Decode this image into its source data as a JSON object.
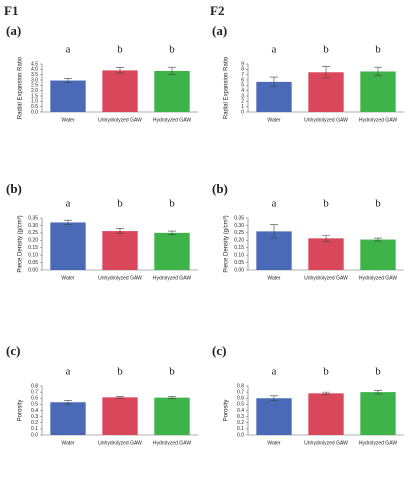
{
  "columns": [
    "F1",
    "F2"
  ],
  "chart_data": [
    {
      "type": "bar",
      "column": 0,
      "panel": "(a)",
      "ylabel": "Radial Expansion Ratio",
      "categories": [
        "Water",
        "Unhydrolyzed GAW",
        "Hydrolyzed GAW"
      ],
      "values": [
        2.95,
        3.9,
        3.85
      ],
      "errors": [
        0.2,
        0.25,
        0.35
      ],
      "annotations": [
        "a",
        "b",
        "b"
      ],
      "colors": [
        "#4a6ab8",
        "#d9485a",
        "#3db34a"
      ],
      "ylim": [
        0,
        4.5
      ],
      "yticks": [
        {
          "value": 0,
          "label": "0.0"
        },
        {
          "value": 0.5,
          "label": "0.5"
        },
        {
          "value": 1,
          "label": "1.0"
        },
        {
          "value": 1.5,
          "label": "1.5"
        },
        {
          "value": 2,
          "label": "2.0"
        },
        {
          "value": 2.5,
          "label": "2.5"
        },
        {
          "value": 3,
          "label": "3.0"
        },
        {
          "value": 3.5,
          "label": "3.5"
        },
        {
          "value": 4,
          "label": "4.0"
        },
        {
          "value": 4.5,
          "label": "4.5"
        }
      ]
    },
    {
      "type": "bar",
      "column": 0,
      "panel": "(b)",
      "ylabel": "Piece Density (g/cm³)",
      "categories": [
        "Water",
        "Unhydrolyzed GAW",
        "Hydrolyzed GAW"
      ],
      "values": [
        0.32,
        0.262,
        0.25
      ],
      "errors": [
        0.015,
        0.018,
        0.012
      ],
      "annotations": [
        "a",
        "b",
        "b"
      ],
      "colors": [
        "#4a6ab8",
        "#d9485a",
        "#3db34a"
      ],
      "ylim": [
        0,
        0.35
      ],
      "yticks": [
        {
          "value": 0,
          "label": "0.00"
        },
        0.05,
        {
          "value": 0.1,
          "label": "0.10"
        },
        0.15,
        {
          "value": 0.2,
          "label": "0.20"
        },
        0.25,
        {
          "value": 0.3,
          "label": "0.30"
        },
        0.35
      ]
    },
    {
      "type": "bar",
      "column": 0,
      "panel": "(c)",
      "ylabel": "Porosity",
      "categories": [
        "Water",
        "Unhydrolyzed GAW",
        "Hydrolyzed GAW"
      ],
      "values": [
        0.535,
        0.615,
        0.61
      ],
      "errors": [
        0.03,
        0.015,
        0.015
      ],
      "annotations": [
        "a",
        "b",
        "b"
      ],
      "colors": [
        "#4a6ab8",
        "#d9485a",
        "#3db34a"
      ],
      "ylim": [
        0,
        0.8
      ],
      "yticks": [
        {
          "value": 0,
          "label": "0.0"
        },
        0.1,
        0.2,
        0.3,
        0.4,
        0.5,
        0.6,
        0.7,
        0.8
      ]
    },
    {
      "type": "bar",
      "column": 1,
      "panel": "(a)",
      "ylabel": "Radial Expansion Ratio",
      "categories": [
        "Water",
        "Unhydrolyzed GAW",
        "Hydrolyzed GAW"
      ],
      "values": [
        5.65,
        7.45,
        7.6
      ],
      "errors": [
        0.9,
        1.1,
        0.8
      ],
      "annotations": [
        "a",
        "b",
        "b"
      ],
      "colors": [
        "#4a6ab8",
        "#d9485a",
        "#3db34a"
      ],
      "ylim": [
        0,
        9
      ],
      "yticks": [
        0,
        1,
        2,
        3,
        4,
        5,
        6,
        7,
        8,
        9
      ]
    },
    {
      "type": "bar",
      "column": 1,
      "panel": "(b)",
      "ylabel": "Piece Density (g/cm³)",
      "categories": [
        "Water",
        "Unhydrolyzed GAW",
        "Hydrolyzed GAW"
      ],
      "values": [
        0.26,
        0.213,
        0.205
      ],
      "errors": [
        0.045,
        0.02,
        0.01
      ],
      "annotations": [
        "a",
        "b",
        "b"
      ],
      "colors": [
        "#4a6ab8",
        "#d9485a",
        "#3db34a"
      ],
      "ylim": [
        0,
        0.35
      ],
      "yticks": [
        {
          "value": 0,
          "label": "0.00"
        },
        0.05,
        {
          "value": 0.1,
          "label": "0.10"
        },
        0.15,
        {
          "value": 0.2,
          "label": "0.20"
        },
        0.25,
        {
          "value": 0.3,
          "label": "0.30"
        },
        0.35
      ]
    },
    {
      "type": "bar",
      "column": 1,
      "panel": "(c)",
      "ylabel": "Porosity",
      "categories": [
        "Water",
        "Unhydrolyzed GAW",
        "Hydrolyzed GAW"
      ],
      "values": [
        0.6,
        0.68,
        0.7
      ],
      "errors": [
        0.04,
        0.02,
        0.03
      ],
      "annotations": [
        "a",
        "b",
        "b"
      ],
      "colors": [
        "#4a6ab8",
        "#d9485a",
        "#3db34a"
      ],
      "ylim": [
        0,
        0.8
      ],
      "yticks": [
        {
          "value": 0,
          "label": "0.0"
        },
        0.1,
        0.2,
        0.3,
        0.4,
        0.5,
        0.6,
        0.7,
        0.8
      ]
    }
  ]
}
